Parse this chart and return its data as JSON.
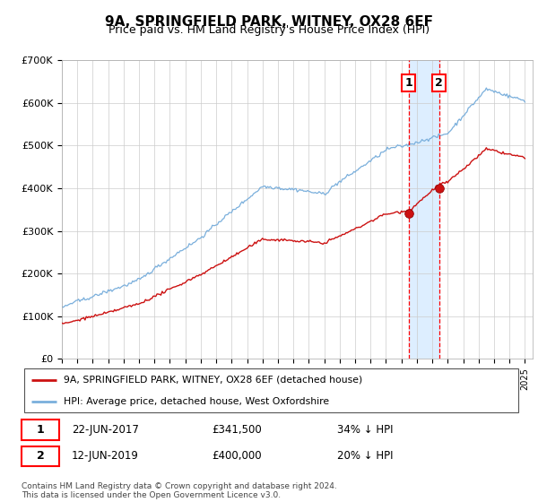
{
  "title": "9A, SPRINGFIELD PARK, WITNEY, OX28 6EF",
  "subtitle": "Price paid vs. HM Land Registry's House Price Index (HPI)",
  "ylim": [
    0,
    700000
  ],
  "yticks": [
    0,
    100000,
    200000,
    300000,
    400000,
    500000,
    600000,
    700000
  ],
  "ytick_labels": [
    "£0",
    "£100K",
    "£200K",
    "£300K",
    "£400K",
    "£500K",
    "£600K",
    "£700K"
  ],
  "hpi_color": "#7aafdc",
  "price_color": "#cc1111",
  "transaction1": {
    "date": "22-JUN-2017",
    "price": 341500,
    "pct": "34%",
    "direction": "↓",
    "year": 2017.47
  },
  "transaction2": {
    "date": "12-JUN-2019",
    "price": 400000,
    "pct": "20%",
    "direction": "↓",
    "year": 2019.45
  },
  "legend_label1": "9A, SPRINGFIELD PARK, WITNEY, OX28 6EF (detached house)",
  "legend_label2": "HPI: Average price, detached house, West Oxfordshire",
  "footnote": "Contains HM Land Registry data © Crown copyright and database right 2024.\nThis data is licensed under the Open Government Licence v3.0.",
  "xlim_left": 1995,
  "xlim_right": 2025.5,
  "shade_color": "#ddeeff"
}
